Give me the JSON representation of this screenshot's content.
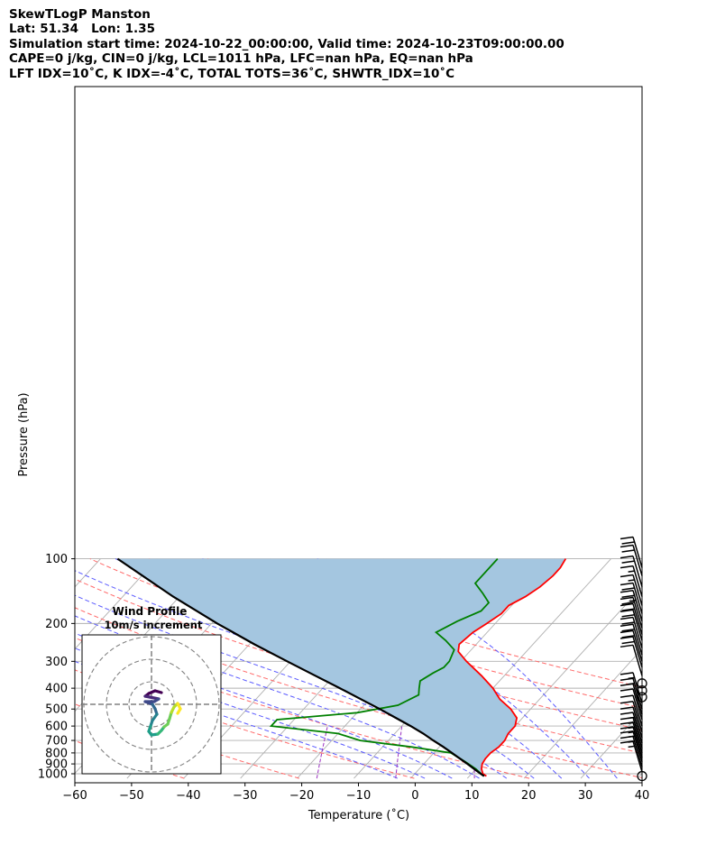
{
  "header": {
    "line1": "SkewTLogP Manston",
    "line2": "Lat: 51.34   Lon: 1.35",
    "line3": "Simulation start time: 2024-10-22_00:00:00, Valid time: 2024-10-23T09:00:00.00",
    "line4": "CAPE=0 j/kg, CIN=0 j/kg, LCL=1011 hPa, LFC=nan hPa, EQ=nan hPa",
    "line5": "LFT IDX=10˚C, K IDX=-4˚C, TOTAL TOTS=36˚C, SHWTR_IDX=10˚C"
  },
  "chart_data": {
    "type": "line",
    "title": "SkewTLogP Manston",
    "xlabel": "Temperature (˚C)",
    "ylabel": "Pressure (hPa)",
    "xlim": [
      -60,
      40
    ],
    "ylim": [
      1050,
      100
    ],
    "yscale": "log",
    "grid": true,
    "x_ticks": [
      -60,
      -50,
      -40,
      -30,
      -20,
      -10,
      0,
      10,
      20,
      30,
      40
    ],
    "x_tick_labels": [
      "−60",
      "−50",
      "−40",
      "−30",
      "−20",
      "−10",
      "0",
      "10",
      "20",
      "30",
      "40"
    ],
    "y_ticks": [
      1000,
      900,
      800,
      700,
      600,
      500,
      400,
      300,
      200,
      100
    ],
    "y_tick_labels": [
      "1000",
      "900",
      "800",
      "700",
      "600",
      "500",
      "400",
      "300",
      "200",
      "100"
    ],
    "series": [
      {
        "key": "temperature",
        "color": "#ff0000",
        "pressure": [
          1025,
          1000,
          950,
          900,
          850,
          800,
          750,
          700,
          650,
          600,
          550,
          500,
          450,
          400,
          350,
          300,
          270,
          250,
          220,
          200,
          180,
          165,
          150,
          135,
          120,
          110,
          100
        ],
        "values": [
          13,
          12,
          11,
          10.3,
          10,
          10,
          10.5,
          10.5,
          10,
          10,
          9,
          6.5,
          3,
          0,
          -4,
          -9,
          -12,
          -13,
          -12.5,
          -11.5,
          -10.5,
          -10.5,
          -9,
          -8,
          -7.5,
          -7.5,
          -8
        ]
      },
      {
        "key": "dewpoint",
        "color": "#008000",
        "pressure": [
          1025,
          950,
          880,
          800,
          750,
          700,
          650,
          600,
          560,
          520,
          480,
          430,
          400,
          370,
          340,
          320,
          300,
          265,
          240,
          220,
          195,
          175,
          160,
          145,
          130,
          100
        ],
        "values": [
          12.5,
          10,
          7,
          3,
          -5,
          -15,
          -20,
          -33,
          -33,
          -20,
          -14,
          -12,
          -13,
          -14,
          -13,
          -12,
          -12,
          -13,
          -16,
          -19,
          -17,
          -14.5,
          -14.5,
          -17,
          -20,
          -20
        ]
      },
      {
        "key": "parcel_profile",
        "color": "#000000",
        "pressure": [
          1025,
          1000,
          950,
          900,
          850,
          800,
          750,
          700,
          650,
          600,
          550,
          500,
          450,
          400,
          350,
          300,
          250,
          200,
          150,
          100
        ],
        "values": [
          12.6,
          11.6,
          9.7,
          7.7,
          5.5,
          3.2,
          0.7,
          -2.1,
          -5.0,
          -8.4,
          -12.3,
          -16.6,
          -21.5,
          -27.0,
          -33.3,
          -40.6,
          -49.1,
          -59.0,
          -71.1,
          -87.0
        ]
      }
    ],
    "shading": {
      "label": "CAPE/CIN area between parcel and temperature",
      "color": "#a4c6e0"
    },
    "reference_lines": {
      "dry_adiabats_theta_K": [
        230,
        250,
        270,
        290,
        310,
        330,
        350,
        370,
        390
      ],
      "moist_adiabats_start_C": [
        -5,
        0,
        5,
        10,
        15,
        20,
        25,
        30,
        35
      ],
      "mixing_ratio_lines": "purple dashed",
      "isotherm_color": "#b0b0b0",
      "dry_adiabat_color": "#ff6a6a",
      "moist_adiabat_color": "#5a5aff",
      "mixing_ratio_color": "#9a30c0"
    },
    "wind_barbs": {
      "pressure": [
        1025,
        980,
        930,
        880,
        840,
        800,
        760,
        720,
        680,
        640,
        600,
        560,
        530,
        500,
        470,
        440,
        410,
        380,
        350,
        320,
        300,
        280,
        260,
        240,
        225,
        210,
        195,
        180,
        165,
        150,
        135,
        120,
        110
      ],
      "speed_kt": [
        0,
        15,
        15,
        15,
        15,
        15,
        15,
        15,
        10,
        10,
        10,
        10,
        10,
        15,
        15,
        0,
        0,
        0,
        10,
        20,
        20,
        20,
        20,
        20,
        20,
        20,
        25,
        20,
        15,
        15,
        20,
        20,
        20
      ],
      "calm_circles_pressure": [
        1025,
        415
      ]
    },
    "inset": {
      "title": "Wind Profile",
      "subtitle": "10m/s increment",
      "colormap": "viridis",
      "rings": 3,
      "hodograph_u": [
        1.0,
        0.6,
        0.2,
        -0.3,
        -0.5,
        -0.6,
        -0.3,
        0.2,
        0.6,
        0.8,
        1.0,
        1.4,
        1.8,
        2.2,
        2.5,
        2.7,
        3.0,
        3.2,
        3.0,
        2.5,
        2.0,
        1.5,
        0.8
      ],
      "hodograph_v": [
        2.0,
        2.3,
        2.5,
        2.6,
        2.8,
        3.0,
        3.4,
        3.6,
        3.5,
        3.2,
        3.0,
        3.4,
        3.8,
        4.2,
        4.8,
        5.6,
        6.3,
        6.7,
        7.0,
        6.9,
        6.7,
        6.5,
        6.3
      ]
    }
  }
}
